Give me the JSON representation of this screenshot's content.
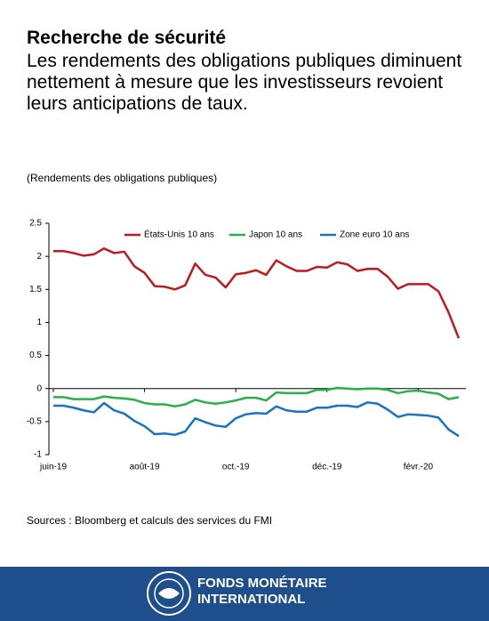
{
  "chart_data": {
    "type": "line",
    "title": "Recherche de sécurité",
    "subtitle": "Les rendements des obligations publiques diminuent nettement à mesure que les investisseurs revoient leurs anticipations de taux.",
    "y_label": "(Rendements des obligations publiques)",
    "source": "Sources : Bloomberg et calculs des services du FMI",
    "categories": [
      "juin-19",
      null,
      null,
      null,
      null,
      null,
      null,
      null,
      null,
      "août-19",
      null,
      null,
      null,
      null,
      null,
      null,
      null,
      null,
      "oct.-19",
      null,
      null,
      null,
      null,
      null,
      null,
      null,
      null,
      "déc.-19",
      null,
      null,
      null,
      null,
      null,
      null,
      null,
      null,
      "févr.-20",
      null,
      null,
      null,
      null
    ],
    "series": [
      {
        "name": "États-Unis 10 ans",
        "color": "#c0191e",
        "values": [
          2.08,
          2.08,
          2.05,
          2.01,
          2.03,
          2.12,
          2.05,
          2.07,
          1.85,
          1.75,
          1.55,
          1.54,
          1.5,
          1.56,
          1.89,
          1.72,
          1.68,
          1.53,
          1.73,
          1.75,
          1.79,
          1.72,
          1.94,
          1.85,
          1.78,
          1.78,
          1.84,
          1.83,
          1.91,
          1.88,
          1.78,
          1.81,
          1.81,
          1.69,
          1.51,
          1.58,
          1.58,
          1.58,
          1.47,
          1.15,
          0.76
        ]
      },
      {
        "name": "Japon 10 ans",
        "color": "#2ab04a",
        "values": [
          -0.13,
          -0.13,
          -0.16,
          -0.16,
          -0.16,
          -0.12,
          -0.14,
          -0.15,
          -0.17,
          -0.22,
          -0.24,
          -0.24,
          -0.27,
          -0.24,
          -0.17,
          -0.21,
          -0.23,
          -0.21,
          -0.18,
          -0.14,
          -0.14,
          -0.18,
          -0.06,
          -0.07,
          -0.07,
          -0.07,
          -0.02,
          -0.02,
          0.01,
          0.0,
          -0.01,
          0.0,
          0.0,
          -0.02,
          -0.07,
          -0.04,
          -0.03,
          -0.06,
          -0.08,
          -0.16,
          -0.13
        ]
      },
      {
        "name": "Zone euro 10 ans",
        "color": "#1a73c2",
        "values": [
          -0.26,
          -0.26,
          -0.29,
          -0.33,
          -0.36,
          -0.22,
          -0.33,
          -0.38,
          -0.49,
          -0.57,
          -0.69,
          -0.68,
          -0.7,
          -0.65,
          -0.45,
          -0.51,
          -0.56,
          -0.58,
          -0.45,
          -0.39,
          -0.37,
          -0.38,
          -0.27,
          -0.33,
          -0.35,
          -0.35,
          -0.29,
          -0.29,
          -0.26,
          -0.26,
          -0.28,
          -0.21,
          -0.23,
          -0.32,
          -0.43,
          -0.39,
          -0.4,
          -0.41,
          -0.44,
          -0.62,
          -0.72
        ]
      }
    ],
    "ylim": [
      -1,
      2.5
    ],
    "yticks": [
      2.5,
      2,
      1.5,
      1,
      0.5,
      0,
      -0.5,
      -1
    ],
    "legend": "top",
    "footer": [
      "FONDS MONÉTAIRE",
      "INTERNATIONAL"
    ]
  }
}
